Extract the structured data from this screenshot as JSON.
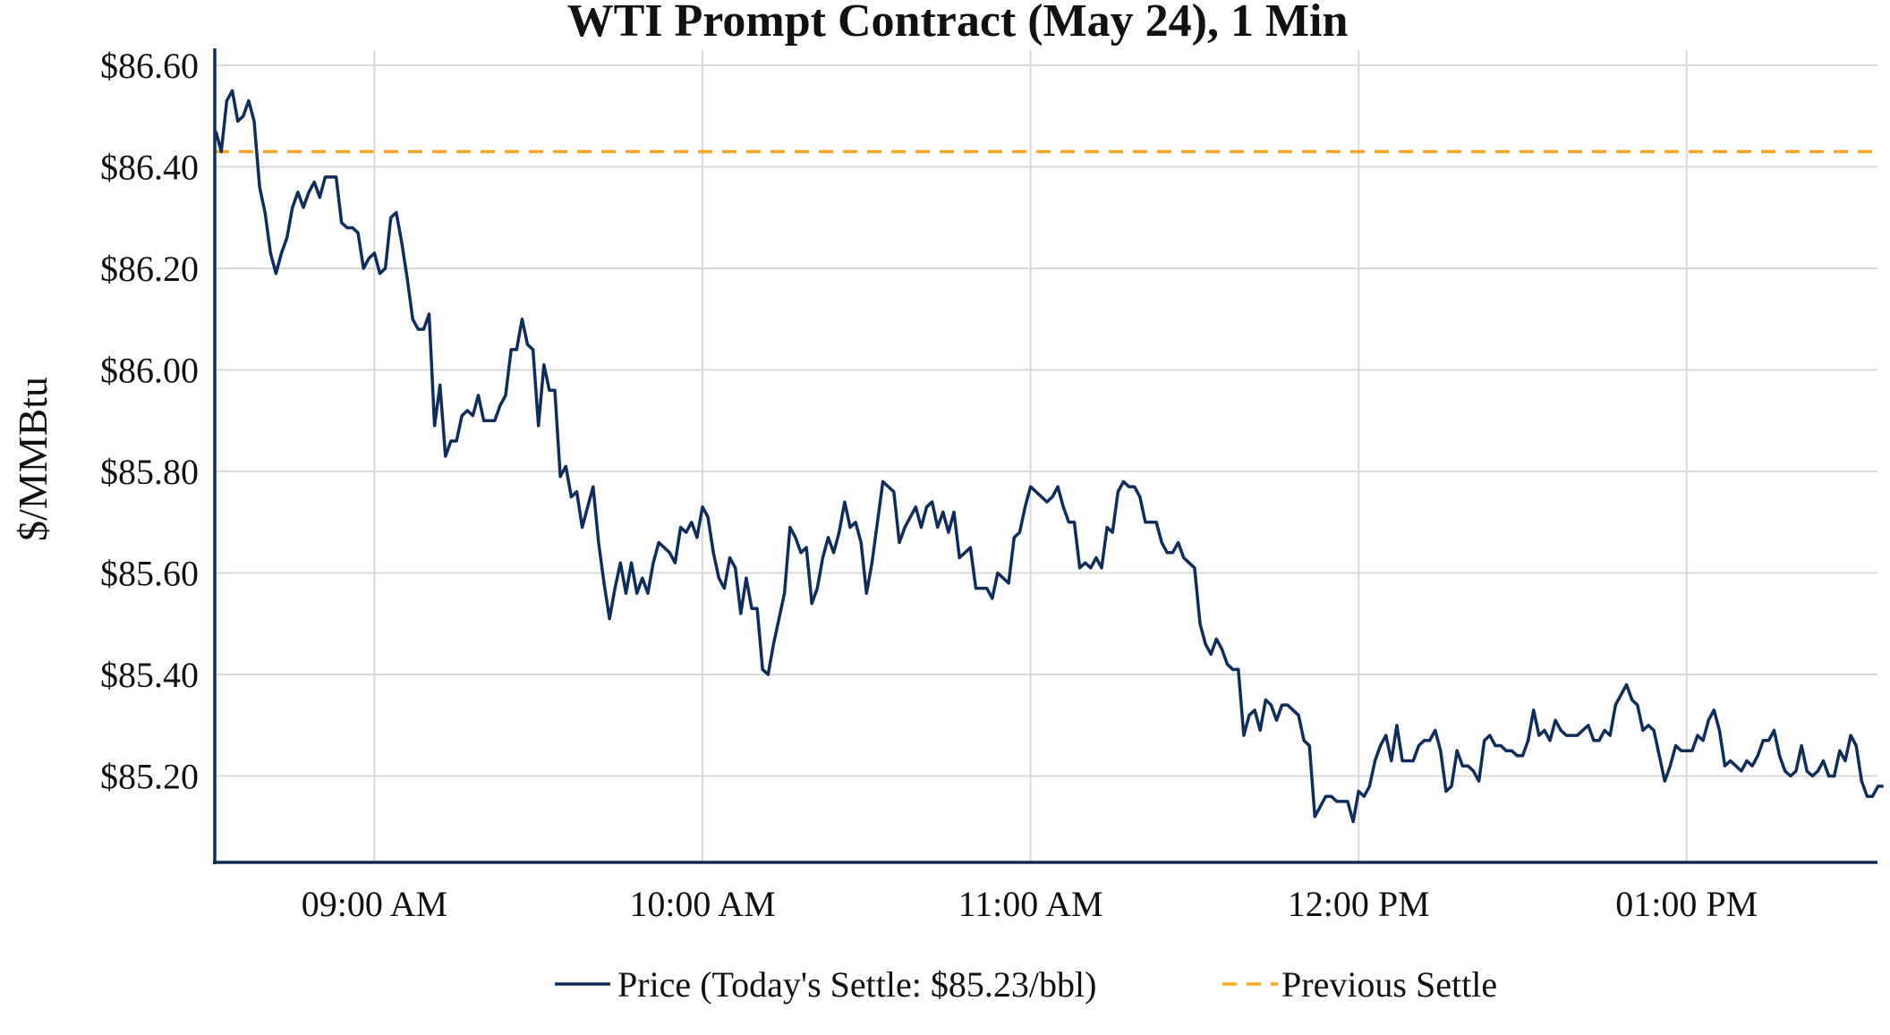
{
  "chart_data": {
    "type": "line",
    "title": "WTI Prompt Contract (May 24), 1 Min",
    "xlabel": "",
    "ylabel": "$/MMBtu",
    "x_ticks": [
      {
        "label": "09:00 AM",
        "minutes": 540
      },
      {
        "label": "10:00 AM",
        "minutes": 600
      },
      {
        "label": "11:00 AM",
        "minutes": 660
      },
      {
        "label": "12:00 PM",
        "minutes": 720
      },
      {
        "label": "01:00 PM",
        "minutes": 780
      }
    ],
    "xlim_minutes": [
      510.8,
      814.9
    ],
    "y_ticks": [
      {
        "label": "$85.20",
        "value": 85.2
      },
      {
        "label": "$85.40",
        "value": 85.4
      },
      {
        "label": "$85.60",
        "value": 85.6
      },
      {
        "label": "$85.80",
        "value": 85.8
      },
      {
        "label": "$86.00",
        "value": 86.0
      },
      {
        "label": "$86.20",
        "value": 86.2
      },
      {
        "label": "$86.40",
        "value": 86.4
      },
      {
        "label": "$86.60",
        "value": 86.6
      }
    ],
    "ylim": [
      85.03,
      86.63
    ],
    "grid": true,
    "legend_position": "bottom",
    "colors": {
      "price": "#0f2d5a",
      "previous_settle": "#f5a623",
      "axis": "#0f2d5a",
      "grid": "#d9d9d9"
    },
    "series": [
      {
        "name": "Price (Today's Settle: $85.23/bbl)",
        "style": "solid",
        "x_start_minutes": 511,
        "x_step_minutes": 1,
        "values": [
          86.47,
          86.43,
          86.53,
          86.55,
          86.49,
          86.5,
          86.53,
          86.49,
          86.36,
          86.31,
          86.23,
          86.19,
          86.23,
          86.26,
          86.32,
          86.35,
          86.32,
          86.35,
          86.37,
          86.34,
          86.38,
          86.38,
          86.38,
          86.29,
          86.28,
          86.28,
          86.27,
          86.2,
          86.22,
          86.23,
          86.19,
          86.2,
          86.3,
          86.31,
          86.25,
          86.18,
          86.1,
          86.08,
          86.08,
          86.11,
          85.89,
          85.97,
          85.83,
          85.86,
          85.86,
          85.91,
          85.92,
          85.91,
          85.95,
          85.9,
          85.9,
          85.9,
          85.93,
          85.95,
          86.04,
          86.04,
          86.1,
          86.05,
          86.04,
          85.89,
          86.01,
          85.96,
          85.96,
          85.79,
          85.81,
          85.75,
          85.76,
          85.69,
          85.73,
          85.77,
          85.66,
          85.58,
          85.51,
          85.57,
          85.62,
          85.56,
          85.62,
          85.56,
          85.59,
          85.56,
          85.62,
          85.66,
          85.65,
          85.64,
          85.62,
          85.69,
          85.68,
          85.7,
          85.67,
          85.73,
          85.71,
          85.64,
          85.59,
          85.57,
          85.63,
          85.61,
          85.52,
          85.59,
          85.53,
          85.53,
          85.41,
          85.4,
          85.46,
          85.51,
          85.56,
          85.69,
          85.67,
          85.64,
          85.65,
          85.54,
          85.57,
          85.63,
          85.67,
          85.64,
          85.68,
          85.74,
          85.69,
          85.7,
          85.66,
          85.56,
          85.62,
          85.7,
          85.78,
          85.77,
          85.76,
          85.66,
          85.69,
          85.71,
          85.73,
          85.69,
          85.73,
          85.74,
          85.69,
          85.72,
          85.68,
          85.72,
          85.63,
          85.64,
          85.65,
          85.57,
          85.57,
          85.57,
          85.55,
          85.6,
          85.59,
          85.58,
          85.67,
          85.68,
          85.73,
          85.77,
          85.76,
          85.75,
          85.74,
          85.75,
          85.77,
          85.73,
          85.7,
          85.7,
          85.61,
          85.62,
          85.61,
          85.63,
          85.61,
          85.69,
          85.68,
          85.76,
          85.78,
          85.77,
          85.77,
          85.75,
          85.7,
          85.7,
          85.7,
          85.66,
          85.64,
          85.64,
          85.66,
          85.63,
          85.62,
          85.61,
          85.5,
          85.46,
          85.44,
          85.47,
          85.45,
          85.42,
          85.41,
          85.41,
          85.28,
          85.32,
          85.33,
          85.29,
          85.35,
          85.34,
          85.31,
          85.34,
          85.34,
          85.33,
          85.32,
          85.27,
          85.26,
          85.12,
          85.14,
          85.16,
          85.16,
          85.15,
          85.15,
          85.15,
          85.11,
          85.17,
          85.16,
          85.18,
          85.23,
          85.26,
          85.28,
          85.23,
          85.3,
          85.23,
          85.23,
          85.23,
          85.26,
          85.27,
          85.27,
          85.29,
          85.25,
          85.17,
          85.18,
          85.25,
          85.22,
          85.22,
          85.21,
          85.19,
          85.27,
          85.28,
          85.26,
          85.26,
          85.25,
          85.25,
          85.24,
          85.24,
          85.27,
          85.33,
          85.28,
          85.29,
          85.27,
          85.31,
          85.29,
          85.28,
          85.28,
          85.28,
          85.29,
          85.3,
          85.27,
          85.27,
          85.29,
          85.28,
          85.34,
          85.36,
          85.38,
          85.35,
          85.34,
          85.29,
          85.3,
          85.29,
          85.24,
          85.19,
          85.22,
          85.26,
          85.25,
          85.25,
          85.25,
          85.28,
          85.27,
          85.31,
          85.33,
          85.29,
          85.22,
          85.23,
          85.22,
          85.21,
          85.23,
          85.22,
          85.24,
          85.27,
          85.27,
          85.29,
          85.24,
          85.21,
          85.2,
          85.21,
          85.26,
          85.21,
          85.2,
          85.21,
          85.23,
          85.2,
          85.2,
          85.25,
          85.23,
          85.28,
          85.26,
          85.19,
          85.16,
          85.16,
          85.18,
          85.18
        ]
      },
      {
        "name": "Previous Settle",
        "style": "dashed",
        "constant": 86.43
      }
    ]
  }
}
